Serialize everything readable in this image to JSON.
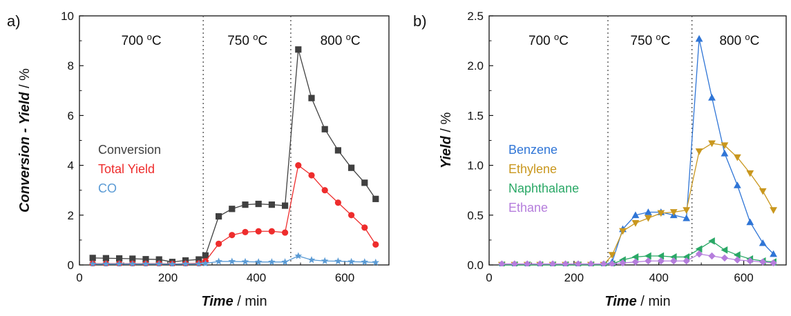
{
  "chart_data": [
    {
      "type": "line",
      "panel_label": "a)",
      "xlabel": "Time",
      "xlabel_unit": " / min",
      "ylabel": "Conversion - Yield",
      "ylabel_unit": " / %",
      "xlim": [
        0,
        700
      ],
      "ylim": [
        0,
        10
      ],
      "xticks": [
        0,
        200,
        400,
        600
      ],
      "yticks": [
        0,
        2,
        4,
        6,
        8,
        10
      ],
      "ytick_labels": [
        "0",
        "2",
        "4",
        "6",
        "8",
        "10"
      ],
      "grid": false,
      "legend_position": "middle-left",
      "dividers": [
        280,
        478
      ],
      "regions": [
        {
          "label": "700 ",
          "sup": "o",
          "unit": "C",
          "x": 140
        },
        {
          "label": "750 ",
          "sup": "o",
          "unit": "C",
          "x": 380
        },
        {
          "label": "800 ",
          "sup": "o",
          "unit": "C",
          "x": 590
        }
      ],
      "series": [
        {
          "name": "Conversion",
          "color": "#404040",
          "marker": "square",
          "x": [
            30,
            60,
            90,
            120,
            150,
            180,
            210,
            240,
            270,
            285,
            315,
            345,
            375,
            405,
            435,
            465,
            495,
            525,
            555,
            585,
            615,
            645,
            670
          ],
          "y": [
            0.28,
            0.27,
            0.26,
            0.25,
            0.23,
            0.22,
            0.12,
            0.18,
            0.22,
            0.38,
            1.95,
            2.25,
            2.42,
            2.45,
            2.42,
            2.38,
            8.65,
            6.7,
            5.45,
            4.6,
            3.9,
            3.3,
            2.65
          ]
        },
        {
          "name": "Total Yield",
          "color": "#ee2c2c",
          "marker": "circle",
          "x": [
            30,
            60,
            90,
            120,
            150,
            180,
            210,
            240,
            270,
            285,
            315,
            345,
            375,
            405,
            435,
            465,
            495,
            525,
            555,
            585,
            615,
            645,
            670
          ],
          "y": [
            0.05,
            0.05,
            0.05,
            0.05,
            0.05,
            0.05,
            0.04,
            0.05,
            0.06,
            0.15,
            0.85,
            1.2,
            1.32,
            1.35,
            1.35,
            1.3,
            4.0,
            3.6,
            3.0,
            2.5,
            2.0,
            1.5,
            0.82
          ]
        },
        {
          "name": "CO",
          "color": "#5b9bd5",
          "marker": "star",
          "x": [
            30,
            60,
            90,
            120,
            150,
            180,
            210,
            240,
            270,
            285,
            315,
            345,
            375,
            405,
            435,
            465,
            495,
            525,
            555,
            585,
            615,
            645,
            670
          ],
          "y": [
            0.04,
            0.04,
            0.04,
            0.04,
            0.04,
            0.04,
            0.03,
            0.04,
            0.04,
            0.06,
            0.14,
            0.14,
            0.13,
            0.12,
            0.12,
            0.12,
            0.36,
            0.2,
            0.16,
            0.15,
            0.13,
            0.12,
            0.1
          ]
        }
      ]
    },
    {
      "type": "line",
      "panel_label": "b)",
      "xlabel": "Time",
      "xlabel_unit": " / min",
      "ylabel": "Yield",
      "ylabel_unit": " / %",
      "xlim": [
        0,
        700
      ],
      "ylim": [
        0,
        2.5
      ],
      "xticks": [
        0,
        200,
        400,
        600
      ],
      "yticks": [
        0,
        0.5,
        1.0,
        1.5,
        2.0,
        2.5
      ],
      "ytick_labels": [
        "0.0",
        "0.5",
        "1.0",
        "1.5",
        "2.0",
        "2.5"
      ],
      "grid": false,
      "legend_position": "middle-left",
      "dividers": [
        280,
        478
      ],
      "regions": [
        {
          "label": "700 ",
          "sup": "o",
          "unit": "C",
          "x": 140
        },
        {
          "label": "750 ",
          "sup": "o",
          "unit": "C",
          "x": 380
        },
        {
          "label": "800 ",
          "sup": "o",
          "unit": "C",
          "x": 590
        }
      ],
      "series": [
        {
          "name": "Benzene",
          "color": "#2f75d6",
          "marker": "triangle-up",
          "x": [
            30,
            60,
            90,
            120,
            150,
            180,
            210,
            240,
            270,
            290,
            315,
            345,
            375,
            405,
            435,
            465,
            495,
            525,
            555,
            585,
            615,
            645,
            670
          ],
          "y": [
            0.0,
            0.0,
            0.0,
            0.0,
            0.0,
            0.0,
            0.0,
            0.0,
            0.0,
            0.03,
            0.36,
            0.5,
            0.53,
            0.53,
            0.5,
            0.47,
            2.27,
            1.68,
            1.12,
            0.8,
            0.43,
            0.22,
            0.11
          ]
        },
        {
          "name": "Ethylene",
          "color": "#c9971e",
          "marker": "triangle-down",
          "x": [
            30,
            60,
            90,
            120,
            150,
            180,
            210,
            240,
            270,
            290,
            315,
            345,
            375,
            405,
            435,
            465,
            495,
            525,
            555,
            585,
            615,
            645,
            670
          ],
          "y": [
            0.0,
            0.0,
            0.0,
            0.0,
            0.0,
            0.0,
            0.0,
            0.0,
            0.0,
            0.1,
            0.34,
            0.42,
            0.47,
            0.52,
            0.53,
            0.55,
            1.14,
            1.22,
            1.2,
            1.08,
            0.92,
            0.74,
            0.55
          ]
        },
        {
          "name": "Naphthalane",
          "color": "#2aa866",
          "marker": "triangle-left",
          "x": [
            30,
            60,
            90,
            120,
            150,
            180,
            210,
            240,
            270,
            290,
            315,
            345,
            375,
            405,
            435,
            465,
            495,
            525,
            555,
            585,
            615,
            645,
            670
          ],
          "y": [
            0.0,
            0.0,
            0.0,
            0.0,
            0.0,
            0.0,
            0.0,
            0.0,
            0.0,
            0.01,
            0.05,
            0.08,
            0.09,
            0.09,
            0.08,
            0.08,
            0.16,
            0.24,
            0.15,
            0.1,
            0.06,
            0.04,
            0.03
          ]
        },
        {
          "name": "Ethane",
          "color": "#b57ddc",
          "marker": "diamond",
          "x": [
            30,
            60,
            90,
            120,
            150,
            180,
            210,
            240,
            270,
            290,
            315,
            345,
            375,
            405,
            435,
            465,
            495,
            525,
            555,
            585,
            615,
            645,
            670
          ],
          "y": [
            0.01,
            0.01,
            0.01,
            0.01,
            0.01,
            0.01,
            0.01,
            0.01,
            0.01,
            0.01,
            0.02,
            0.03,
            0.04,
            0.04,
            0.04,
            0.04,
            0.11,
            0.09,
            0.07,
            0.05,
            0.04,
            0.03,
            0.02
          ]
        }
      ]
    }
  ]
}
